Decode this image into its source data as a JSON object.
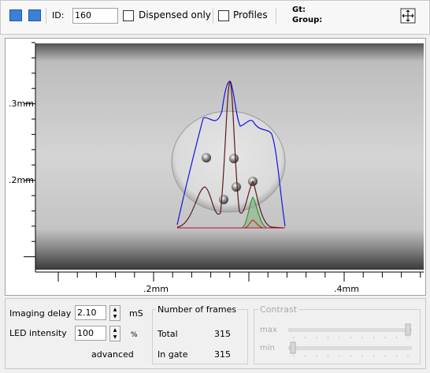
{
  "toolbar": {
    "id_label": "ID:",
    "id_value": "160",
    "dispensed_only": "Dispensed only",
    "profiles": "Profiles",
    "gt": "Gt:",
    "group": "Group:"
  },
  "image_view": {
    "y_labels": [
      ".3mm",
      ".2mm"
    ],
    "x_labels": [
      ".2mm",
      ".4mm"
    ]
  },
  "controls": {
    "imaging_delay": {
      "label": "Imaging delay",
      "value": "2.10",
      "unit": "mS"
    },
    "led_intensity": {
      "label": "LED intensity",
      "value": "100",
      "unit": "%"
    },
    "advanced": "advanced",
    "frames": {
      "title": "Number of frames",
      "total_label": "Total",
      "total": "315",
      "in_gate_label": "In gate",
      "in_gate": "315"
    },
    "contrast": {
      "title": "Contrast",
      "max": "max",
      "min": "min"
    }
  }
}
